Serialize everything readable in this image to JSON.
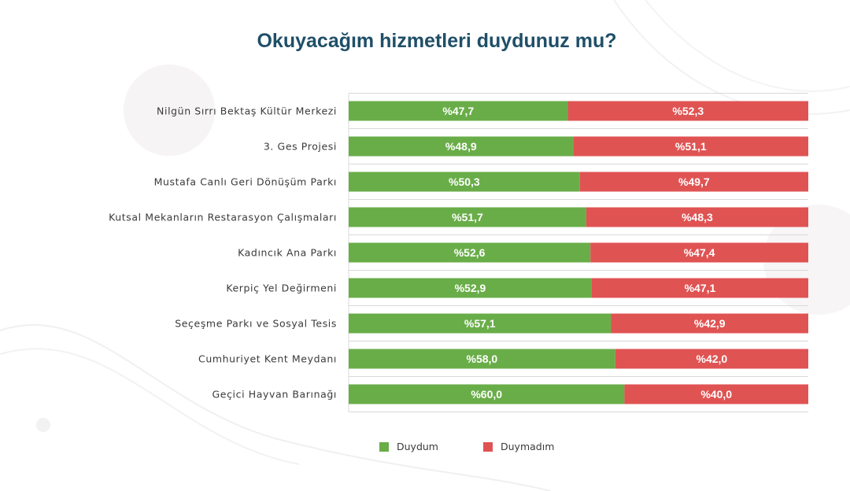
{
  "chart_data": {
    "type": "bar",
    "orientation": "horizontal",
    "stacked": true,
    "title": "Okuyacağım hizmetleri duydunuz mu?",
    "categories": [
      "Nilgün Sırrı Bektaş Kültür Merkezi",
      "3. Ges Projesi",
      "Mustafa Canlı Geri Dönüşüm Parkı",
      "Kutsal Mekanların Restarasyon Çalışmaları",
      "Kadıncık Ana Parkı",
      "Kerpiç Yel Değirmeni",
      "Seçeşme Parkı ve Sosyal Tesis",
      "Cumhuriyet Kent Meydanı",
      "Geçici Hayvan Barınağı"
    ],
    "series": [
      {
        "name": "Duydum",
        "color": "#69ad48",
        "values": [
          47.7,
          48.9,
          50.3,
          51.7,
          52.6,
          52.9,
          57.1,
          58.0,
          60.0
        ],
        "labels": [
          "%47,7",
          "%48,9",
          "%50,3",
          "%51,7",
          "%52,6",
          "%52,9",
          "%57,1",
          "%58,0",
          "%60,0"
        ]
      },
      {
        "name": "Duymadım",
        "color": "#e05353",
        "values": [
          52.3,
          51.1,
          49.7,
          48.3,
          47.4,
          47.1,
          42.9,
          42.0,
          40.0
        ],
        "labels": [
          "%52,3",
          "%51,1",
          "%49,7",
          "%48,3",
          "%47,4",
          "%47,1",
          "%42,9",
          "%42,0",
          "%40,0"
        ]
      }
    ],
    "xlim": [
      0,
      100
    ],
    "grid": true,
    "legend": "bottom-center"
  }
}
